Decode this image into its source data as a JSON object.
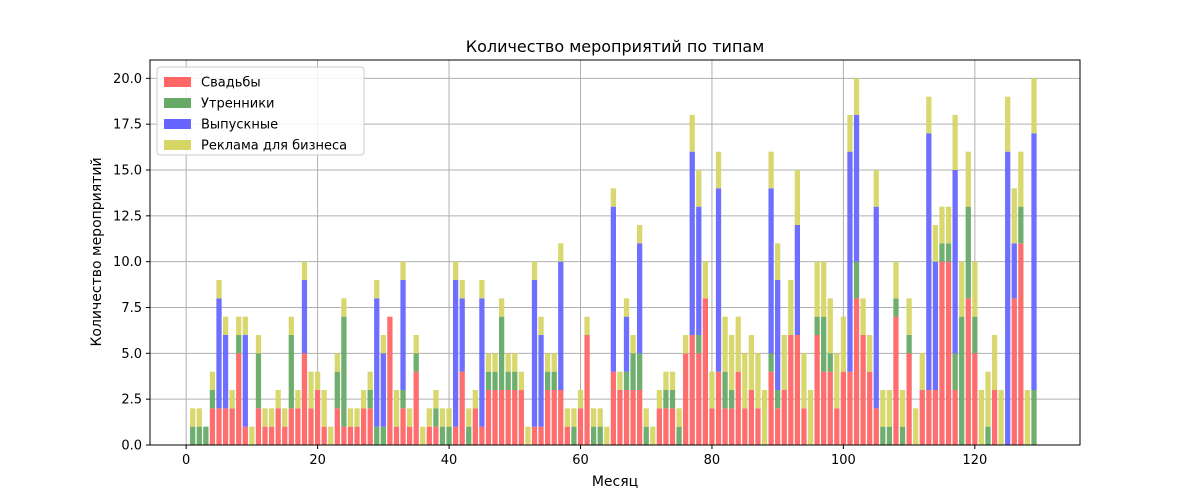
{
  "chart_data": {
    "type": "bar",
    "stacked": true,
    "title": "Количество мероприятий по типам",
    "xlabel": "Месяц",
    "ylabel": "Количество мероприятий",
    "xlim": [
      -5.5,
      136
    ],
    "ylim": [
      0,
      21
    ],
    "xticks": [
      0,
      20,
      40,
      60,
      80,
      100,
      120
    ],
    "yticks": [
      0.0,
      2.5,
      5.0,
      7.5,
      10.0,
      12.5,
      15.0,
      17.5,
      20.0
    ],
    "ytick_labels": [
      "0.0",
      "2.5",
      "5.0",
      "7.5",
      "10.0",
      "12.5",
      "15.0",
      "17.5",
      "20.0"
    ],
    "grid": true,
    "legend_position": "top-left",
    "x": [
      0,
      1,
      2,
      3,
      4,
      5,
      6,
      7,
      8,
      9,
      10,
      11,
      12,
      13,
      14,
      15,
      16,
      17,
      18,
      19,
      20,
      21,
      22,
      23,
      24,
      25,
      26,
      27,
      28,
      29,
      30,
      31,
      32,
      33,
      34,
      35,
      36,
      37,
      38,
      39,
      40,
      41,
      42,
      43,
      44,
      45,
      46,
      47,
      48,
      49,
      50,
      51,
      52,
      53,
      54,
      55,
      56,
      57,
      58,
      59,
      60,
      61,
      62,
      63,
      64,
      65,
      66,
      67,
      68,
      69,
      70,
      71,
      72,
      73,
      74,
      75,
      76,
      77,
      78,
      79,
      80,
      81,
      82,
      83,
      84,
      85,
      86,
      87,
      88,
      89,
      90,
      91,
      92,
      93,
      94,
      95,
      96,
      97,
      98,
      99,
      100,
      101,
      102,
      103,
      104,
      105,
      106,
      107,
      108,
      109,
      110,
      111,
      112,
      113,
      114,
      115,
      116,
      117,
      118,
      119,
      120,
      121,
      122,
      123,
      124,
      125,
      126,
      127,
      128,
      129
    ],
    "series": [
      {
        "name": "Свадьбы",
        "color": "#ff6666",
        "values": [
          0,
          0,
          0,
          0,
          2,
          2,
          2,
          2,
          5,
          1,
          0,
          2,
          1,
          1,
          2,
          1,
          2,
          2,
          5,
          2,
          3,
          1,
          0,
          2,
          1,
          1,
          1,
          2,
          2,
          0,
          0,
          7,
          1,
          2,
          1,
          4,
          0,
          1,
          1,
          0,
          0,
          1,
          4,
          0,
          2,
          1,
          3,
          3,
          3,
          3,
          3,
          3,
          0,
          1,
          1,
          3,
          3,
          3,
          1,
          0,
          2,
          6,
          0,
          0,
          0,
          4,
          3,
          3,
          3,
          3,
          0,
          0,
          2,
          2,
          2,
          0,
          5,
          6,
          5,
          8,
          2,
          4,
          2,
          2,
          4,
          2,
          3,
          2,
          0,
          4,
          2,
          3,
          6,
          6,
          2,
          0,
          6,
          4,
          4,
          2,
          4,
          4,
          8,
          6,
          4,
          2,
          0,
          0,
          7,
          0,
          5,
          0,
          3,
          3,
          3,
          10,
          10,
          3,
          0,
          8,
          5,
          0,
          0,
          3,
          0,
          0,
          8,
          11,
          0,
          0
        ]
      },
      {
        "name": "Утренники",
        "color": "#66aa66",
        "values": [
          0,
          1,
          1,
          1,
          1,
          0,
          0,
          0,
          1,
          0,
          0,
          3,
          0,
          0,
          0,
          0,
          4,
          0,
          0,
          0,
          0,
          0,
          0,
          2,
          6,
          0,
          0,
          0,
          1,
          1,
          1,
          0,
          0,
          1,
          0,
          1,
          0,
          0,
          1,
          1,
          1,
          0,
          0,
          1,
          0,
          0,
          1,
          1,
          4,
          1,
          1,
          0,
          0,
          0,
          0,
          1,
          1,
          0,
          0,
          1,
          0,
          0,
          1,
          1,
          0,
          0,
          0,
          1,
          2,
          2,
          1,
          0,
          0,
          1,
          1,
          1,
          0,
          0,
          1,
          0,
          0,
          0,
          2,
          1,
          0,
          0,
          0,
          0,
          0,
          1,
          1,
          0,
          0,
          0,
          0,
          0,
          1,
          3,
          1,
          0,
          0,
          0,
          2,
          0,
          0,
          0,
          1,
          1,
          1,
          1,
          1,
          0,
          0,
          0,
          0,
          1,
          1,
          2,
          7,
          5,
          2,
          0,
          1,
          0,
          0,
          0,
          0,
          2,
          0,
          3
        ]
      },
      {
        "name": "Выпускные",
        "color": "#6666ff",
        "values": [
          0,
          0,
          0,
          0,
          0,
          6,
          4,
          0,
          0,
          5,
          0,
          0,
          0,
          0,
          0,
          0,
          0,
          0,
          4,
          0,
          0,
          0,
          0,
          0,
          0,
          0,
          0,
          0,
          0,
          7,
          4,
          0,
          0,
          6,
          0,
          0,
          0,
          0,
          0,
          0,
          0,
          8,
          4,
          0,
          0,
          7,
          0,
          0,
          0,
          0,
          0,
          0,
          0,
          8,
          5,
          0,
          0,
          7,
          0,
          0,
          0,
          0,
          0,
          0,
          0,
          9,
          0,
          3,
          0,
          6,
          0,
          0,
          0,
          0,
          0,
          0,
          0,
          10,
          7,
          0,
          0,
          10,
          0,
          0,
          0,
          0,
          0,
          0,
          0,
          9,
          6,
          0,
          0,
          6,
          0,
          0,
          0,
          0,
          0,
          0,
          0,
          12,
          8,
          0,
          0,
          11,
          0,
          0,
          0,
          0,
          0,
          0,
          0,
          14,
          7,
          0,
          0,
          10,
          0,
          0,
          0,
          0,
          0,
          0,
          0,
          16,
          3,
          0,
          0,
          14
        ]
      },
      {
        "name": "Реклама для бизнеса",
        "color": "#d6d666",
        "values": [
          0,
          1,
          1,
          0,
          1,
          1,
          1,
          1,
          1,
          1,
          1,
          1,
          1,
          1,
          1,
          1,
          1,
          1,
          1,
          2,
          1,
          2,
          1,
          1,
          1,
          1,
          1,
          1,
          1,
          1,
          1,
          0,
          2,
          1,
          1,
          1,
          1,
          1,
          1,
          1,
          1,
          1,
          1,
          1,
          1,
          1,
          1,
          1,
          1,
          1,
          1,
          1,
          1,
          1,
          1,
          1,
          1,
          1,
          1,
          1,
          1,
          1,
          1,
          1,
          1,
          1,
          1,
          1,
          1,
          1,
          1,
          1,
          1,
          1,
          1,
          1,
          1,
          2,
          2,
          2,
          2,
          2,
          3,
          3,
          3,
          3,
          3,
          3,
          3,
          2,
          2,
          3,
          3,
          3,
          3,
          3,
          3,
          3,
          3,
          3,
          3,
          2,
          2,
          2,
          2,
          2,
          2,
          2,
          2,
          2,
          2,
          2,
          2,
          2,
          2,
          2,
          2,
          3,
          3,
          3,
          3,
          3,
          3,
          3,
          3,
          3,
          3,
          3,
          3,
          3
        ]
      }
    ]
  }
}
